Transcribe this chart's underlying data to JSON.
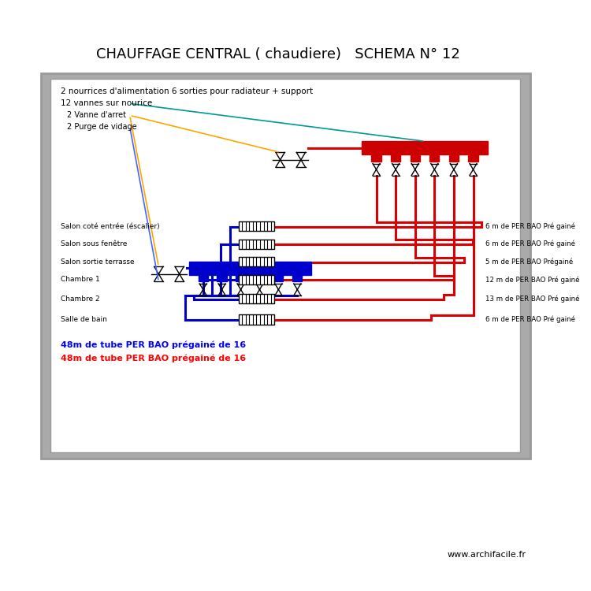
{
  "title": "CHAUFFAGE CENTRAL ( chaudiere)   SCHEMA N° 12",
  "bg_outer": "#ffffff",
  "bg_gray": "#aaaaaa",
  "bg_white": "#ffffff",
  "text_blue": "#0000ff",
  "text_red": "#ff0000",
  "text_black": "#000000",
  "website": "www.archifacile.fr",
  "line1": "2 nourrices d'alimentation 6 sorties pour radiateur + support",
  "line2": "12 vannes sur nourice",
  "line3": "2 Vanne d'arret",
  "line4": "2 Purge de vidage",
  "rooms": [
    "Salon coté entrée (éscalier)",
    "Salon sous fenêtre",
    "Salon sortie terrasse",
    "Chambre 1",
    "Chambre 2",
    "Salle de bain"
  ],
  "lengths": [
    "6 m de PER BAO Pré gainé",
    "6 m de PER BAO Pré gainé",
    "5 m de PER BAO Prégainé",
    "12 m de PER BAO Pré gainé",
    "13 m de PER BAO Pré gainé",
    "6 m de PER BAO Pré gainé"
  ],
  "note_blue": "48m de tube PER BAO prégainé de 16",
  "note_red": "48m de tube PER BAO prégainé de 16",
  "red_pipe": "#dd0000",
  "blue_pipe": "#0000cc",
  "teal_line": "#009999",
  "orange_line": "#ffa500"
}
